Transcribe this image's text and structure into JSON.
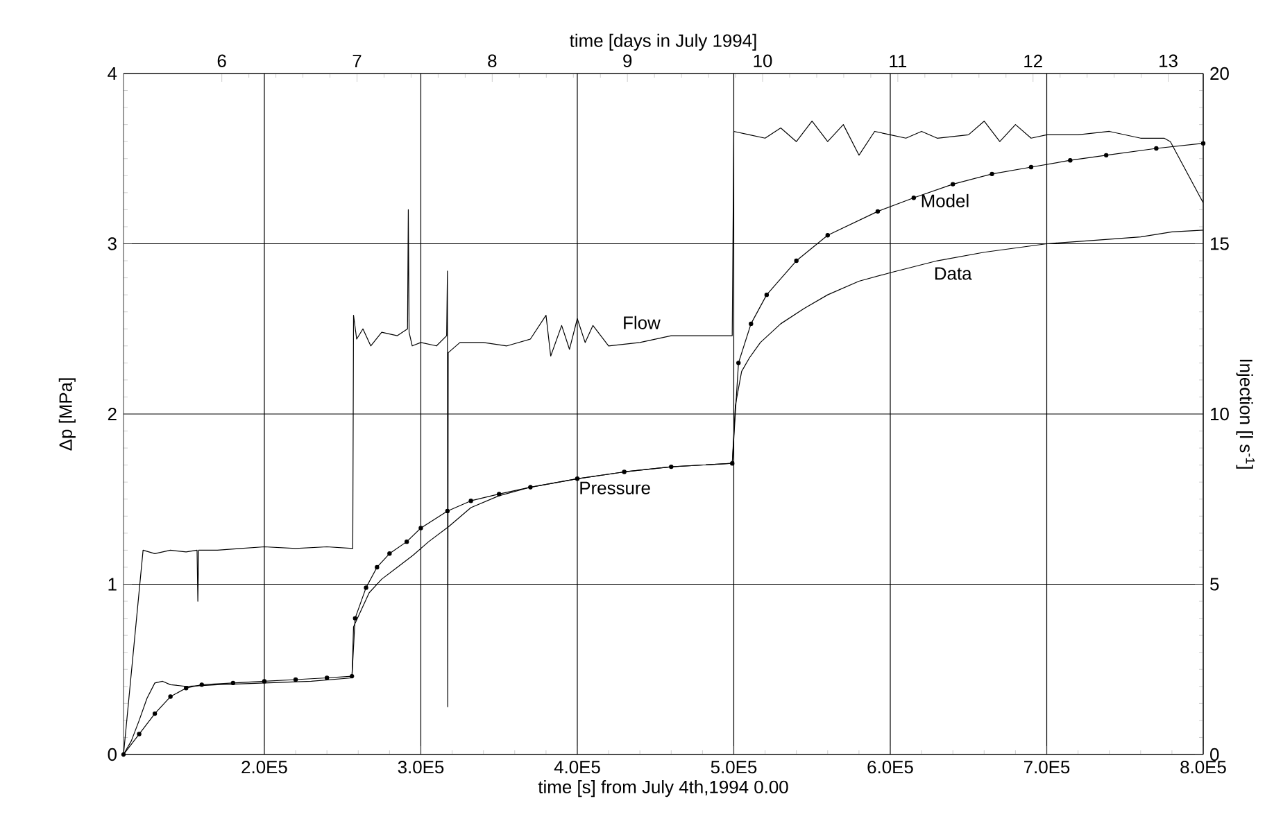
{
  "chart_data": {
    "type": "line",
    "xlabel": "time [s] from July 4th,1994 0.00",
    "x2label": "time [days in July 1994]",
    "ylabel": "Δp [MPa]",
    "y2label": "Injection [l s$^{-1}$]",
    "xlim": [
      110000,
      800000
    ],
    "xticks": [
      {
        "value": 200000,
        "label": "2.0E5"
      },
      {
        "value": 300000,
        "label": "3.0E5"
      },
      {
        "value": 400000,
        "label": "4.0E5"
      },
      {
        "value": 500000,
        "label": "5.0E5"
      },
      {
        "value": 600000,
        "label": "6.0E5"
      },
      {
        "value": 700000,
        "label": "7.0E5"
      },
      {
        "value": 800000,
        "label": "8.0E5"
      }
    ],
    "x2lim": [
      5.273,
      13.259
    ],
    "x2ticks": [
      6,
      7,
      8,
      9,
      10,
      11,
      12,
      13
    ],
    "ylim": [
      0,
      4
    ],
    "yticks": [
      0,
      1,
      2,
      3,
      4
    ],
    "y2lim": [
      0,
      20
    ],
    "y2ticks": [
      0,
      5,
      10,
      15,
      20
    ],
    "grid": true,
    "marker": "none",
    "line_style": "solid",
    "series": [
      {
        "color": "#000000",
        "axis": "y2",
        "x": [
          110000,
          122500,
          130000,
          140000,
          150000,
          157000,
          157500,
          158000,
          170000,
          185000,
          200000,
          220000,
          240000,
          256500,
          257000,
          259000,
          263000,
          268000,
          275000,
          285000,
          291500,
          292000,
          292500,
          294500,
          300000,
          310000,
          316500,
          317000,
          317200,
          317500,
          325000,
          340000,
          355000,
          370000,
          380000,
          383000,
          390000,
          395000,
          400000,
          405000,
          410000,
          420000,
          440000,
          460000,
          480000,
          499000,
          500000,
          510000,
          520000,
          530000,
          540000,
          550000,
          560000,
          570000,
          580000,
          590000,
          600000,
          610000,
          620000,
          630000,
          650000,
          660000,
          670000,
          680000,
          690000,
          700000,
          720000,
          740000,
          760000,
          775000,
          779000,
          800000
        ],
        "values": [
          0,
          6.0,
          5.9,
          6.0,
          5.95,
          6.0,
          4.5,
          6.0,
          6.0,
          6.05,
          6.1,
          6.05,
          6.1,
          6.05,
          12.9,
          12.2,
          12.5,
          12.0,
          12.4,
          12.3,
          12.5,
          16.0,
          12.4,
          12.0,
          12.1,
          12.0,
          12.3,
          14.2,
          1.4,
          11.8,
          12.1,
          12.1,
          12.0,
          12.2,
          12.9,
          11.7,
          12.6,
          11.9,
          12.8,
          12.1,
          12.6,
          12.0,
          12.1,
          12.3,
          12.3,
          12.3,
          18.3,
          18.2,
          18.1,
          18.4,
          18.0,
          18.6,
          18.0,
          18.5,
          17.6,
          18.3,
          18.2,
          18.1,
          18.3,
          18.1,
          18.2,
          18.6,
          18.0,
          18.5,
          18.1,
          18.2,
          18.2,
          18.3,
          18.1,
          18.1,
          18.0,
          16.2
        ]
      },
      {
        "color": "#000000",
        "x": [
          110000,
          115000,
          120000,
          125000,
          130000,
          135000,
          140000,
          150000,
          170000,
          200000,
          230000,
          256000,
          257000,
          262000,
          267000,
          275000,
          285000,
          295000,
          305000,
          318000,
          332000,
          350000,
          370000,
          400000,
          430000,
          460000,
          499000,
          501000,
          505000,
          510000,
          517000,
          530000,
          545000,
          560000,
          580000,
          600000,
          630000,
          660000,
          700000,
          730000,
          760000,
          780000,
          800000
        ],
        "values": [
          0,
          0.08,
          0.2,
          0.33,
          0.42,
          0.43,
          0.41,
          0.4,
          0.41,
          0.42,
          0.43,
          0.45,
          0.75,
          0.85,
          0.95,
          1.03,
          1.1,
          1.17,
          1.25,
          1.34,
          1.45,
          1.52,
          1.57,
          1.62,
          1.66,
          1.69,
          1.71,
          2.05,
          2.25,
          2.33,
          2.42,
          2.53,
          2.62,
          2.7,
          2.78,
          2.83,
          2.9,
          2.95,
          3.0,
          3.02,
          3.04,
          3.07,
          3.08
        ]
      },
      {
        "color": "#000000",
        "marker": "circle",
        "x": [
          110000,
          120000,
          130000,
          140000,
          150000,
          160000,
          180000,
          200000,
          220000,
          240000,
          256000,
          258000,
          265000,
          272000,
          280000,
          291000,
          300000,
          317000,
          332000,
          350000,
          370000,
          400000,
          430000,
          460000,
          499000,
          503000,
          511000,
          521000,
          540000,
          560000,
          592000,
          615000,
          640000,
          665000,
          690000,
          715000,
          738000,
          770000,
          800000
        ],
        "values": [
          0,
          0.12,
          0.24,
          0.34,
          0.39,
          0.41,
          0.42,
          0.43,
          0.44,
          0.45,
          0.46,
          0.8,
          0.98,
          1.1,
          1.18,
          1.25,
          1.33,
          1.43,
          1.49,
          1.53,
          1.57,
          1.62,
          1.66,
          1.69,
          1.71,
          2.3,
          2.53,
          2.7,
          2.9,
          3.05,
          3.19,
          3.27,
          3.35,
          3.41,
          3.45,
          3.49,
          3.52,
          3.56,
          3.59
        ]
      }
    ],
    "annotations": [
      {
        "text": "Flow",
        "x": 441000,
        "y": 2.46
      },
      {
        "text": "Pressure",
        "x": 424000,
        "y": 1.64
      },
      {
        "text": "Model",
        "x": 635000,
        "y": 3.33
      },
      {
        "text": "Data",
        "x": 640000,
        "y": 2.9
      }
    ]
  }
}
